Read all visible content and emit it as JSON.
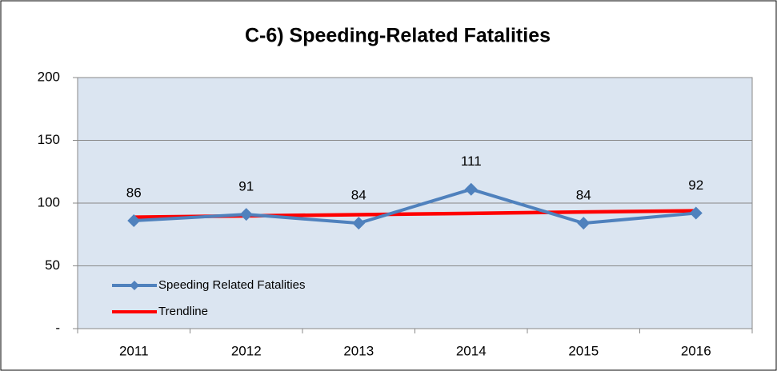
{
  "chart_data": {
    "type": "line",
    "title": "C-6) Speeding-Related Fatalities",
    "categories": [
      "2011",
      "2012",
      "2013",
      "2014",
      "2015",
      "2016"
    ],
    "series": [
      {
        "name": "Speeding Related Fatalities",
        "color": "#4f81bd",
        "values": [
          86,
          91,
          84,
          111,
          84,
          92
        ],
        "data_labels": true,
        "marker": "diamond"
      },
      {
        "name": "Trendline",
        "color": "#ff0000",
        "values": [
          88.8,
          89.8,
          90.8,
          91.8,
          92.9,
          93.9
        ],
        "data_labels": false
      }
    ],
    "ylim": [
      0,
      200
    ],
    "yticks": [
      {
        "value": 0,
        "label": "-"
      },
      50,
      100,
      150,
      200
    ],
    "grid": true,
    "legend": "lower left",
    "plot_background": "#dbe5f1"
  }
}
